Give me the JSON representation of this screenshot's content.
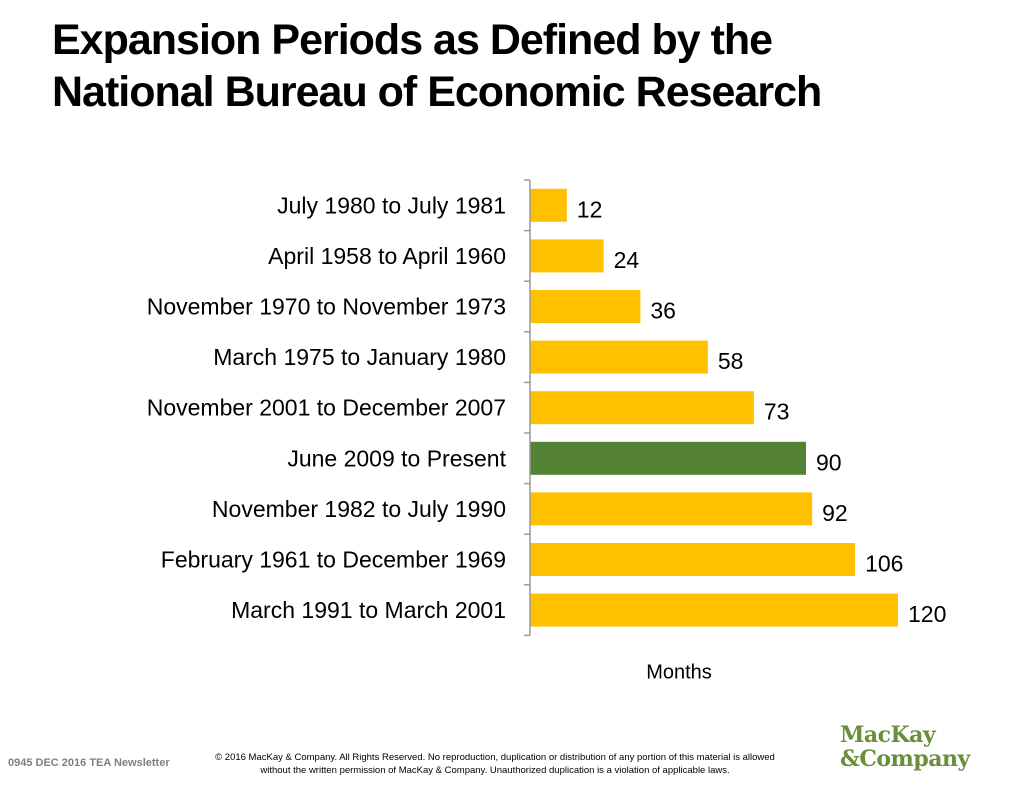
{
  "title": {
    "line1": "Expansion Periods as Defined by the",
    "line2": "National Bureau of Economic Research"
  },
  "chart_data": {
    "type": "bar",
    "orientation": "horizontal",
    "categories": [
      "July 1980 to July 1981",
      "April 1958 to April 1960",
      "November 1970 to November 1973",
      "March 1975 to January 1980",
      "November 2001 to December 2007",
      "June 2009 to Present",
      "November 1982 to July 1990",
      "February 1961 to December 1969",
      "March 1991 to March 2001"
    ],
    "values": [
      12,
      24,
      36,
      58,
      73,
      90,
      92,
      106,
      120
    ],
    "bar_colors": [
      "#FFC000",
      "#FFC000",
      "#FFC000",
      "#FFC000",
      "#FFC000",
      "#548235",
      "#FFC000",
      "#FFC000",
      "#FFC000"
    ],
    "xlabel": "Months",
    "ylabel": "",
    "xlim": [
      0,
      120
    ],
    "data_labels": true,
    "grid": false,
    "legend": "none"
  },
  "footer": {
    "code": "0945 DEC 2016 TEA Newsletter",
    "copyright_line1": "© 2016 MacKay & Company.  All Rights Reserved.  No reproduction, duplication or distribution of any portion of this material is allowed",
    "copyright_line2": "without the written permission of MacKay & Company. Unauthorized duplication is a violation of applicable laws."
  },
  "logo": {
    "line1": "MacKay",
    "line2": "&Company",
    "color": "#6a8e3a"
  }
}
